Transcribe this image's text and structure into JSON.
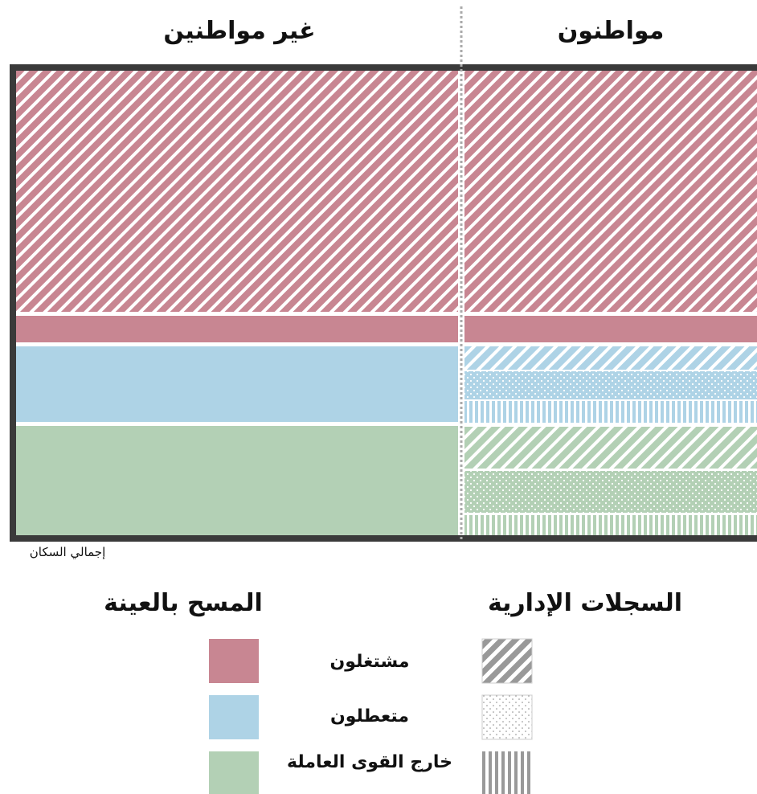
{
  "header": {
    "citizens": "مواطنون",
    "non_citizens": "غير مواطنين"
  },
  "footnote": "إجمالي السكان",
  "legend": {
    "admin_records": "السجلات الإدارية",
    "sample_survey": "المسح بالعينة",
    "items": [
      "مشتغلون",
      "متعطلون",
      "خارج القوى العاملة"
    ]
  }
}
